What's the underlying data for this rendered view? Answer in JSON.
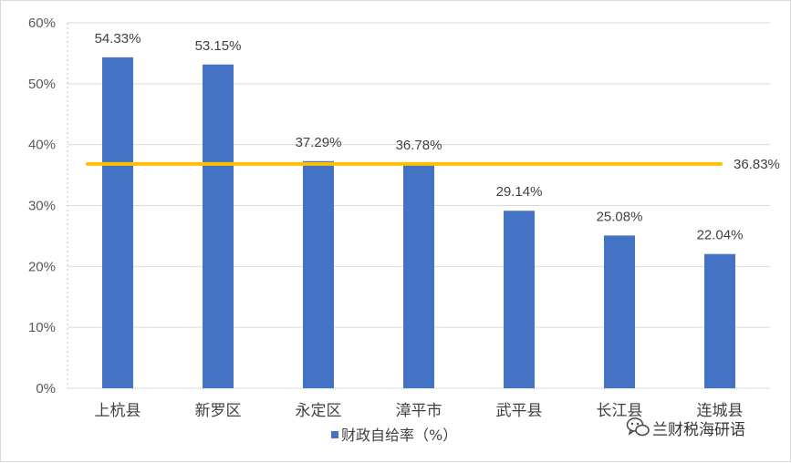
{
  "chart_data": {
    "type": "bar",
    "categories": [
      "上杭县",
      "新罗区",
      "永定区",
      "漳平市",
      "武平县",
      "长江县",
      "连城县"
    ],
    "series": [
      {
        "name": "财政自给率（%）",
        "values": [
          54.33,
          53.15,
          37.29,
          36.78,
          29.14,
          25.08,
          22.04
        ]
      }
    ],
    "data_labels": [
      "54.33%",
      "53.15%",
      "37.29%",
      "36.78%",
      "29.14%",
      "25.08%",
      "22.04%"
    ],
    "average": {
      "value": 36.83,
      "label": "36.83%"
    },
    "y_ticks": [
      0,
      10,
      20,
      30,
      40,
      50,
      60
    ],
    "y_tick_labels": [
      "0%",
      "10%",
      "20%",
      "30%",
      "40%",
      "50%",
      "60%"
    ],
    "ylim": [
      0,
      60
    ],
    "grid": true,
    "legend_position": "bottom",
    "colors": {
      "bar": "#4472C4",
      "average_line": "#FFC000",
      "grid": "#D9D9D9"
    }
  },
  "watermark": {
    "text": "兰财税海研语",
    "icon": "wechat-icon"
  }
}
